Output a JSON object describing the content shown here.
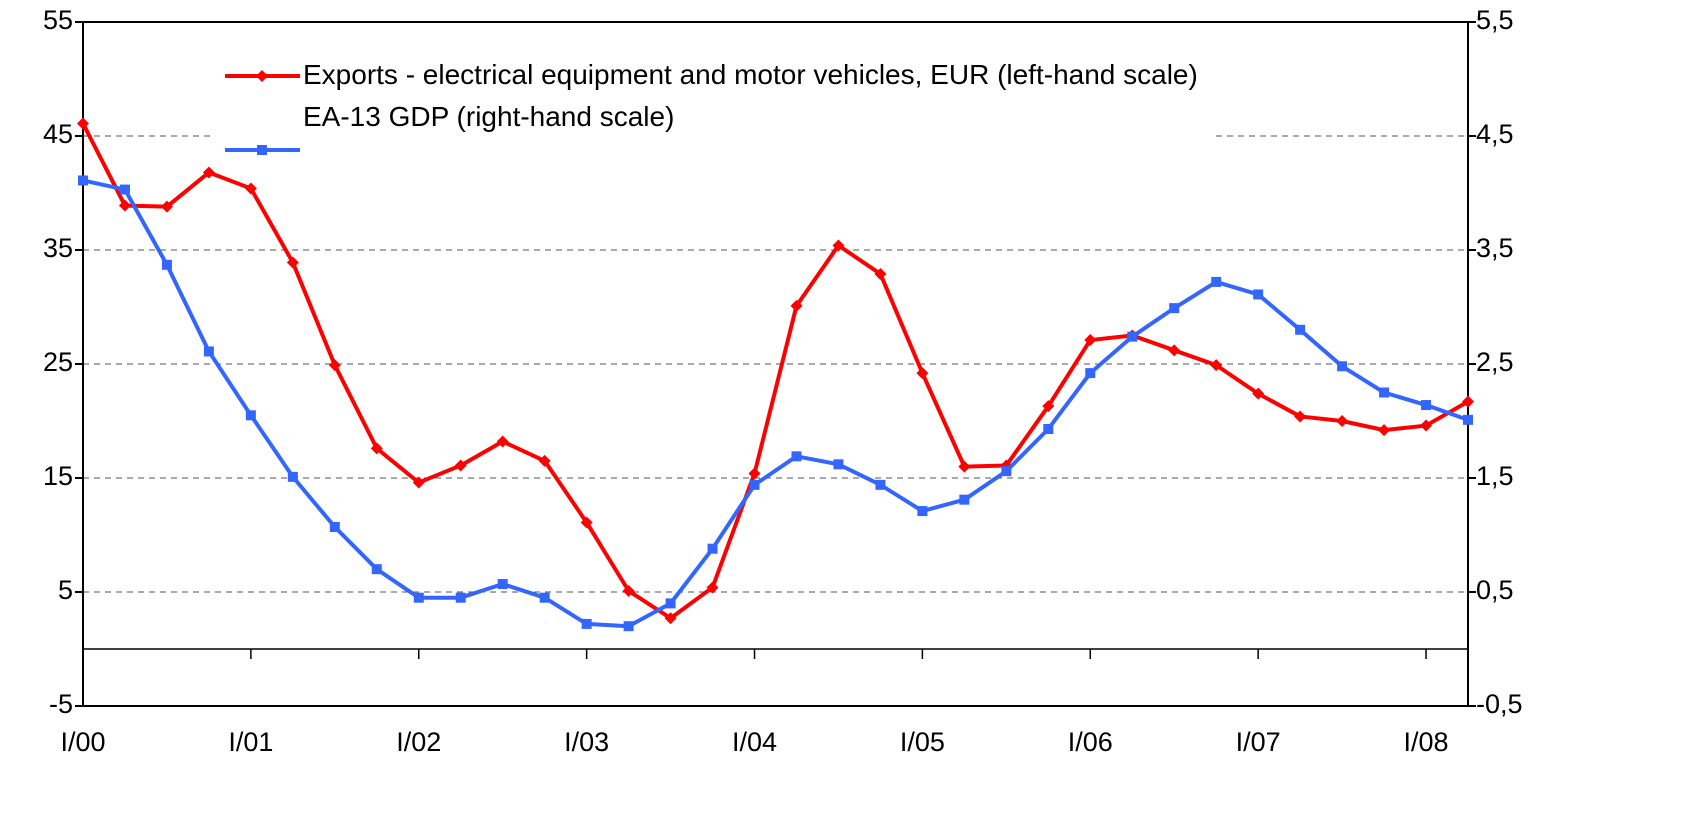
{
  "chart_data": {
    "type": "line",
    "categories": [
      "I/00",
      null,
      null,
      null,
      "I/01",
      null,
      null,
      null,
      "I/02",
      null,
      null,
      null,
      "I/03",
      null,
      null,
      null,
      "I/04",
      null,
      null,
      null,
      "I/05",
      null,
      null,
      null,
      "I/06",
      null,
      null,
      null,
      "I/07",
      null,
      null,
      null,
      "I/08",
      null
    ],
    "series": [
      {
        "name": "Exports - electrical equipment and motor vehicles, EUR (left-hand scale)",
        "color": "#ff0000",
        "marker": "diamond",
        "values": [
          46.1,
          38.9,
          38.8,
          41.8,
          40.4,
          33.9,
          24.9,
          17.6,
          14.6,
          16.1,
          18.2,
          16.5,
          11.1,
          5.1,
          2.7,
          5.4,
          15.4,
          30.1,
          35.4,
          32.9,
          24.2,
          16.0,
          16.1,
          21.3,
          27.1,
          27.5,
          26.2,
          24.9,
          22.4,
          20.4,
          20.0,
          19.2,
          19.6,
          21.7
        ]
      },
      {
        "name": "EA-13 GDP (right-hand scale)",
        "color": "#3366ff",
        "marker": "square",
        "axis": "y2",
        "values": [
          4.11,
          4.03,
          3.37,
          2.61,
          2.05,
          1.51,
          1.07,
          0.7,
          0.45,
          0.45,
          0.57,
          0.45,
          0.22,
          0.2,
          0.4,
          0.88,
          1.44,
          1.69,
          1.62,
          1.44,
          1.21,
          1.31,
          1.56,
          1.93,
          2.42,
          2.74,
          2.99,
          3.22,
          3.11,
          2.8,
          2.48,
          2.25,
          2.14,
          2.01
        ]
      }
    ],
    "ylim": [
      -5,
      55
    ],
    "yticks": [
      -5,
      5,
      15,
      25,
      35,
      45,
      55
    ],
    "y2lim": [
      -0.5,
      5.5
    ],
    "y2ticks": [
      {
        "value": -0.5,
        "label": "-0,5"
      },
      {
        "value": 0.5,
        "label": "0,5"
      },
      {
        "value": 1.5,
        "label": "1,5"
      },
      {
        "value": 2.5,
        "label": "2,5"
      },
      {
        "value": 3.5,
        "label": "3,5"
      },
      {
        "value": 4.5,
        "label": "4,5"
      },
      {
        "value": 5.5,
        "label": "5,5"
      }
    ],
    "grid": true
  }
}
